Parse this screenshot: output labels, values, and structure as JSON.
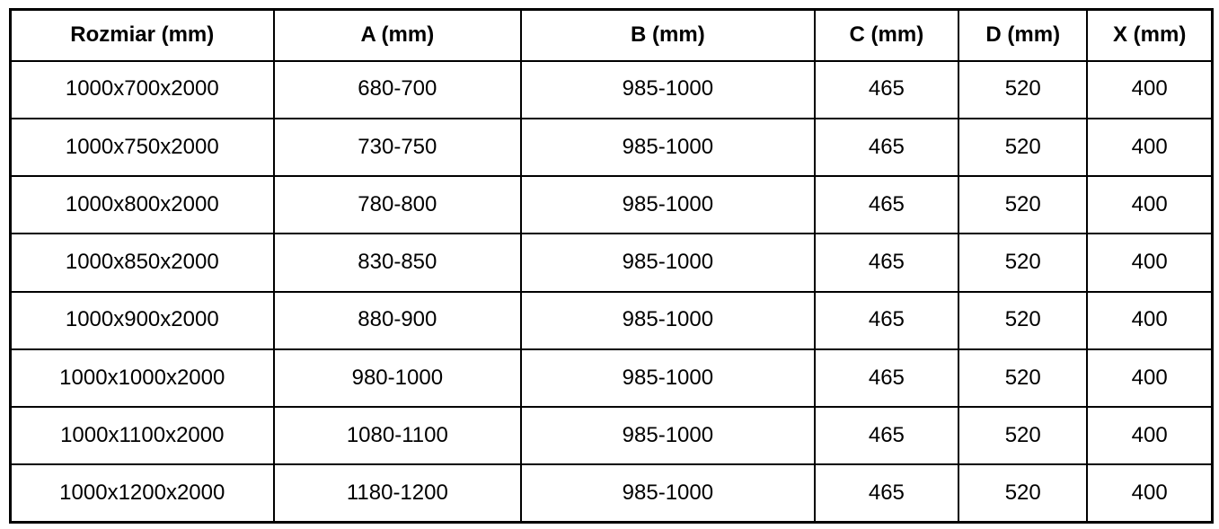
{
  "chart_data": {
    "type": "table",
    "title": "",
    "columns": [
      "Rozmiar (mm)",
      "A (mm)",
      "B (mm)",
      "C (mm)",
      "D (mm)",
      "X (mm)"
    ],
    "rows": [
      [
        "1000x700x2000",
        "680-700",
        "985-1000",
        "465",
        "520",
        "400"
      ],
      [
        "1000x750x2000",
        "730-750",
        "985-1000",
        "465",
        "520",
        "400"
      ],
      [
        "1000x800x2000",
        "780-800",
        "985-1000",
        "465",
        "520",
        "400"
      ],
      [
        "1000x850x2000",
        "830-850",
        "985-1000",
        "465",
        "520",
        "400"
      ],
      [
        "1000x900x2000",
        "880-900",
        "985-1000",
        "465",
        "520",
        "400"
      ],
      [
        "1000x1000x2000",
        "980-1000",
        "985-1000",
        "465",
        "520",
        "400"
      ],
      [
        "1000x1100x2000",
        "1080-1100",
        "985-1000",
        "465",
        "520",
        "400"
      ],
      [
        "1000x1200x2000",
        "1180-1200",
        "985-1000",
        "465",
        "520",
        "400"
      ]
    ],
    "layout": {
      "grid": true,
      "header_bold": true,
      "text_color": "#000000",
      "border_color": "#000000",
      "background_color": "#ffffff"
    }
  }
}
